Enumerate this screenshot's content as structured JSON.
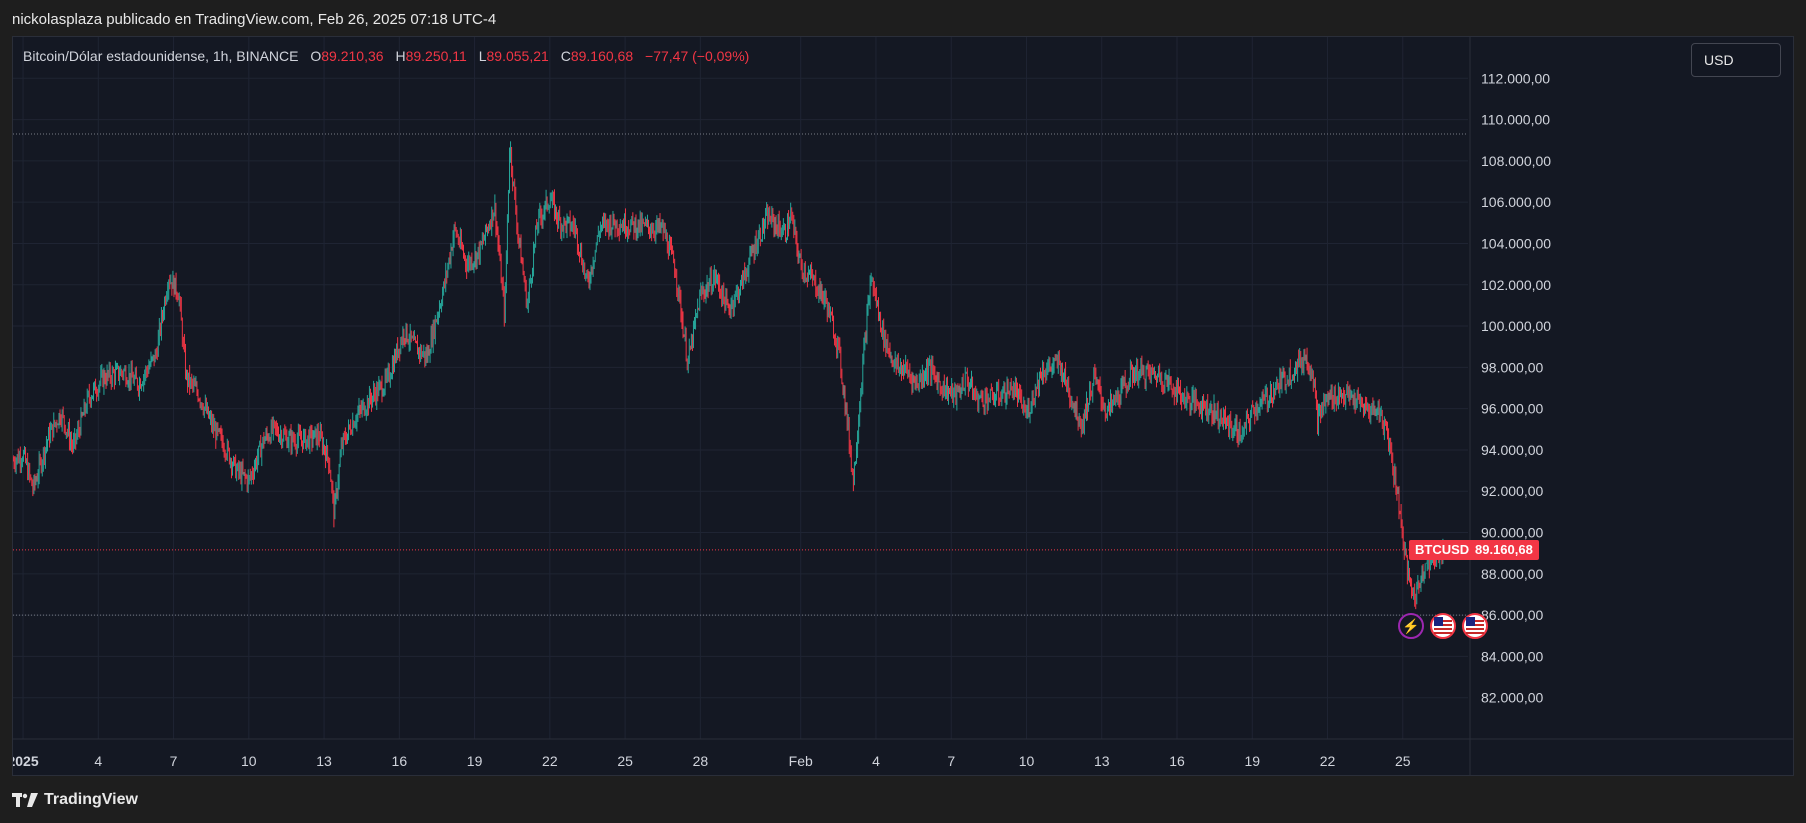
{
  "header": {
    "publish_line": "nickolasplaza publicado en TradingView.com, Feb 26, 2025 07:18 UTC-4"
  },
  "legend": {
    "symbol_line": "Bitcoin/Dólar estadounidense, 1h, BINANCE",
    "o_label": "O",
    "o_value": "89.210,36",
    "h_label": "H",
    "h_value": "89.250,11",
    "l_label": "L",
    "l_value": "89.055,21",
    "c_label": "C",
    "c_value": "89.160,68",
    "change": "−77,47 (−0,09%)"
  },
  "currency_button": "USD",
  "last_price": {
    "symbol": "BTCUSD",
    "value": "89.160,68"
  },
  "footer": {
    "brand": "TradingView"
  },
  "colors": {
    "background": "#141823",
    "up": "#26a69a",
    "down": "#f23645",
    "grid": "#1f2433",
    "accent_purple": "#9c27b0"
  },
  "icons": [
    "lightning-icon",
    "us-flag-icon",
    "us-flag-icon"
  ],
  "chart_data": {
    "type": "candlestick",
    "symbol": "Bitcoin/Dólar estadounidense",
    "interval": "1h",
    "exchange": "BINANCE",
    "ylim": [
      80000,
      114000
    ],
    "y_ticks": [
      "112.000,00",
      "110.000,00",
      "108.000,00",
      "106.000,00",
      "104.000,00",
      "102.000,00",
      "100.000,00",
      "98.000,00",
      "96.000,00",
      "94.000,00",
      "92.000,00",
      "90.000,00",
      "88.000,00",
      "86.000,00",
      "84.000,00",
      "82.000,00"
    ],
    "y_tick_values": [
      112000,
      110000,
      108000,
      106000,
      104000,
      102000,
      100000,
      98000,
      96000,
      94000,
      92000,
      90000,
      88000,
      86000,
      84000,
      82000
    ],
    "x_tick_labels": [
      "2025",
      "4",
      "7",
      "10",
      "13",
      "16",
      "19",
      "22",
      "25",
      "28",
      "Feb",
      "4",
      "7",
      "10",
      "13",
      "16",
      "19",
      "22",
      "25"
    ],
    "x_tick_days": [
      1,
      4,
      7,
      10,
      13,
      16,
      19,
      22,
      25,
      28,
      32,
      35,
      38,
      41,
      44,
      47,
      50,
      53,
      56
    ],
    "x_range_days": [
      0.6,
      58.6
    ],
    "horizontal_lines": [
      109300,
      86000
    ],
    "last_close": 89160.68,
    "series": [
      {
        "name": "BTCUSD",
        "anchors": [
          [
            0.6,
            93500
          ],
          [
            1,
            93800
          ],
          [
            1.4,
            92100
          ],
          [
            2,
            94600
          ],
          [
            2.5,
            95800
          ],
          [
            3,
            94100
          ],
          [
            3.6,
            96500
          ],
          [
            4.2,
            97500
          ],
          [
            5,
            97800
          ],
          [
            5.6,
            97200
          ],
          [
            6.3,
            98600
          ],
          [
            6.8,
            102400
          ],
          [
            7.2,
            101600
          ],
          [
            7.5,
            97500
          ],
          [
            8,
            96700
          ],
          [
            8.6,
            95000
          ],
          [
            9,
            94300
          ],
          [
            9.5,
            93000
          ],
          [
            10,
            92500
          ],
          [
            10.6,
            94500
          ],
          [
            11,
            95000
          ],
          [
            11.6,
            94500
          ],
          [
            12.3,
            94500
          ],
          [
            12.8,
            94700
          ],
          [
            13.2,
            93500
          ],
          [
            13.4,
            90900
          ],
          [
            13.7,
            94200
          ],
          [
            14.2,
            95500
          ],
          [
            15,
            96700
          ],
          [
            15.5,
            97300
          ],
          [
            16.2,
            99800
          ],
          [
            16.6,
            99000
          ],
          [
            17.1,
            98500
          ],
          [
            17.8,
            102000
          ],
          [
            18.2,
            104700
          ],
          [
            18.7,
            103000
          ],
          [
            19.2,
            103600
          ],
          [
            19.8,
            105800
          ],
          [
            20.2,
            100500
          ],
          [
            20.4,
            108900
          ],
          [
            20.7,
            104800
          ],
          [
            21.1,
            101000
          ],
          [
            21.5,
            105000
          ],
          [
            22,
            106200
          ],
          [
            22.4,
            105000
          ],
          [
            23,
            104800
          ],
          [
            23.5,
            102000
          ],
          [
            24,
            104800
          ],
          [
            24.5,
            105000
          ],
          [
            25.2,
            104900
          ],
          [
            25.8,
            104800
          ],
          [
            26.5,
            104700
          ],
          [
            27,
            102800
          ],
          [
            27.5,
            98200
          ],
          [
            28,
            101500
          ],
          [
            28.6,
            102400
          ],
          [
            29.1,
            100800
          ],
          [
            29.6,
            101900
          ],
          [
            30.2,
            104000
          ],
          [
            30.7,
            105300
          ],
          [
            31,
            104900
          ],
          [
            31.4,
            104500
          ],
          [
            31.6,
            105400
          ],
          [
            32,
            102900
          ],
          [
            32.5,
            102200
          ],
          [
            33,
            101200
          ],
          [
            33.5,
            99000
          ],
          [
            33.8,
            96000
          ],
          [
            34.1,
            92500
          ],
          [
            34.5,
            98500
          ],
          [
            34.8,
            102400
          ],
          [
            35.3,
            99500
          ],
          [
            35.8,
            98000
          ],
          [
            36.2,
            97900
          ],
          [
            36.6,
            97200
          ],
          [
            37.1,
            98000
          ],
          [
            37.6,
            97100
          ],
          [
            38.2,
            96600
          ],
          [
            38.6,
            97500
          ],
          [
            39,
            96500
          ],
          [
            39.5,
            96500
          ],
          [
            40,
            96700
          ],
          [
            40.5,
            97000
          ],
          [
            41,
            95700
          ],
          [
            41.6,
            97800
          ],
          [
            42.3,
            98200
          ],
          [
            42.8,
            96500
          ],
          [
            43.2,
            95200
          ],
          [
            43.7,
            97500
          ],
          [
            44.2,
            95800
          ],
          [
            44.8,
            96900
          ],
          [
            45.3,
            97800
          ],
          [
            45.8,
            97700
          ],
          [
            46.3,
            97600
          ],
          [
            46.8,
            97100
          ],
          [
            47.3,
            96500
          ],
          [
            48.2,
            96100
          ],
          [
            48.7,
            95600
          ],
          [
            49.2,
            95100
          ],
          [
            49.6,
            94700
          ],
          [
            50,
            95900
          ],
          [
            50.5,
            96400
          ],
          [
            51,
            97100
          ],
          [
            51.5,
            97700
          ],
          [
            52.1,
            98500
          ],
          [
            52.4,
            97900
          ],
          [
            52.6,
            95500
          ],
          [
            53,
            96500
          ],
          [
            53.6,
            96700
          ],
          [
            54.1,
            96400
          ],
          [
            54.6,
            95900
          ],
          [
            55,
            96000
          ],
          [
            55.4,
            94800
          ],
          [
            55.8,
            91800
          ],
          [
            56,
            89800
          ],
          [
            56.2,
            87900
          ],
          [
            56.5,
            86800
          ],
          [
            56.8,
            88300
          ],
          [
            57.2,
            88700
          ],
          [
            57.6,
            89160
          ]
        ]
      }
    ]
  }
}
